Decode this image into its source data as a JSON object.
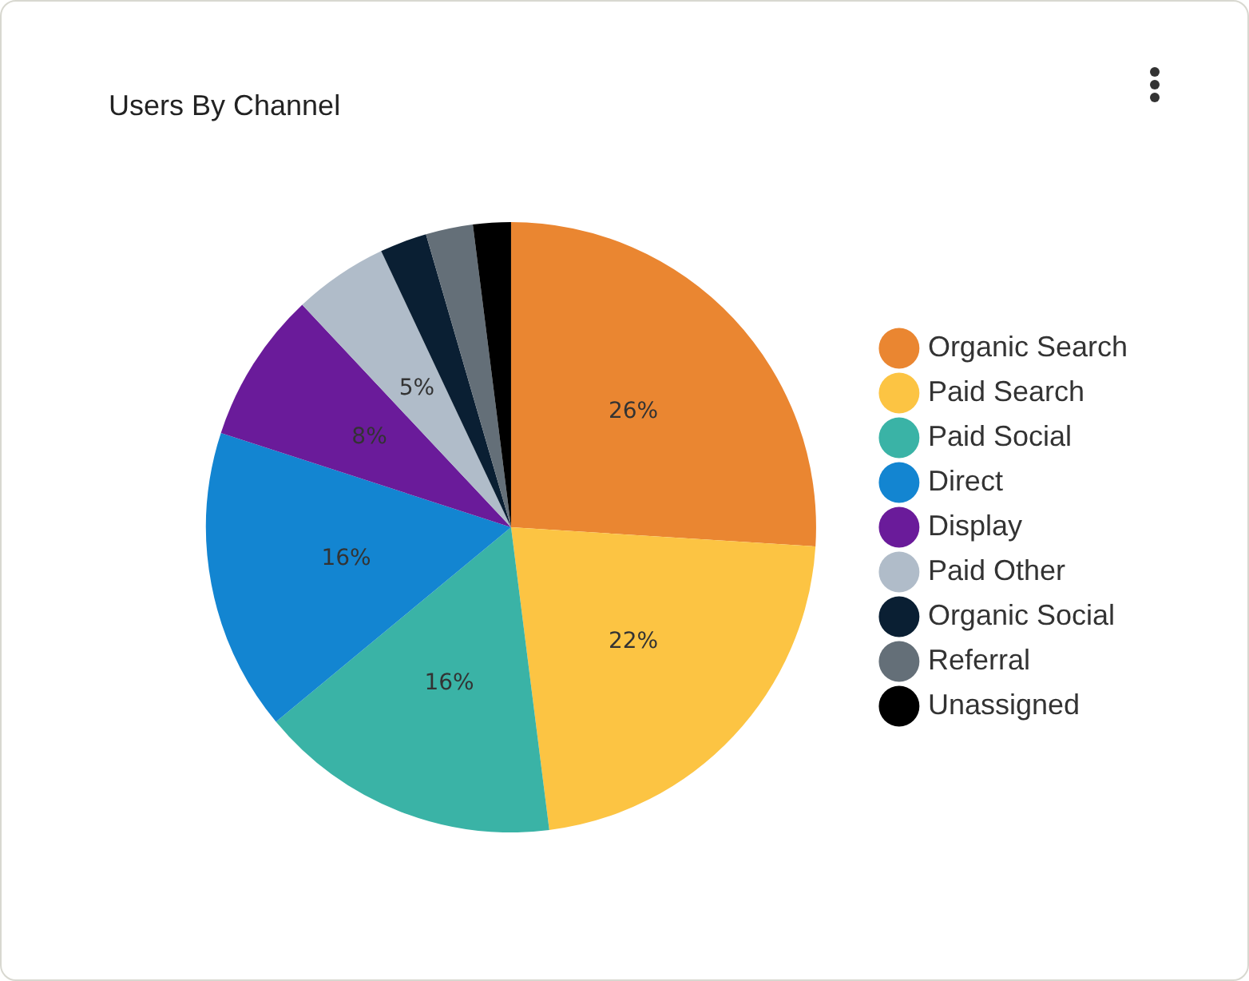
{
  "chart_data": {
    "type": "pie",
    "title": "Users By Channel",
    "categories": [
      "Organic Search",
      "Paid Search",
      "Paid Social",
      "Direct",
      "Display",
      "Paid Other",
      "Organic Social",
      "Referral",
      "Unassigned"
    ],
    "values": [
      26,
      22,
      16,
      16,
      8,
      5,
      2.5,
      2.5,
      2
    ],
    "colors": [
      "#ea8631",
      "#fcc443",
      "#3ab3a6",
      "#1385d1",
      "#6a1b9a",
      "#b0bcc9",
      "#0a1f33",
      "#646f78",
      "#000000"
    ],
    "value_labels": [
      "26%",
      "22%",
      "16%",
      "16%",
      "8%",
      "5%",
      null,
      null,
      null
    ],
    "legend": "right"
  }
}
